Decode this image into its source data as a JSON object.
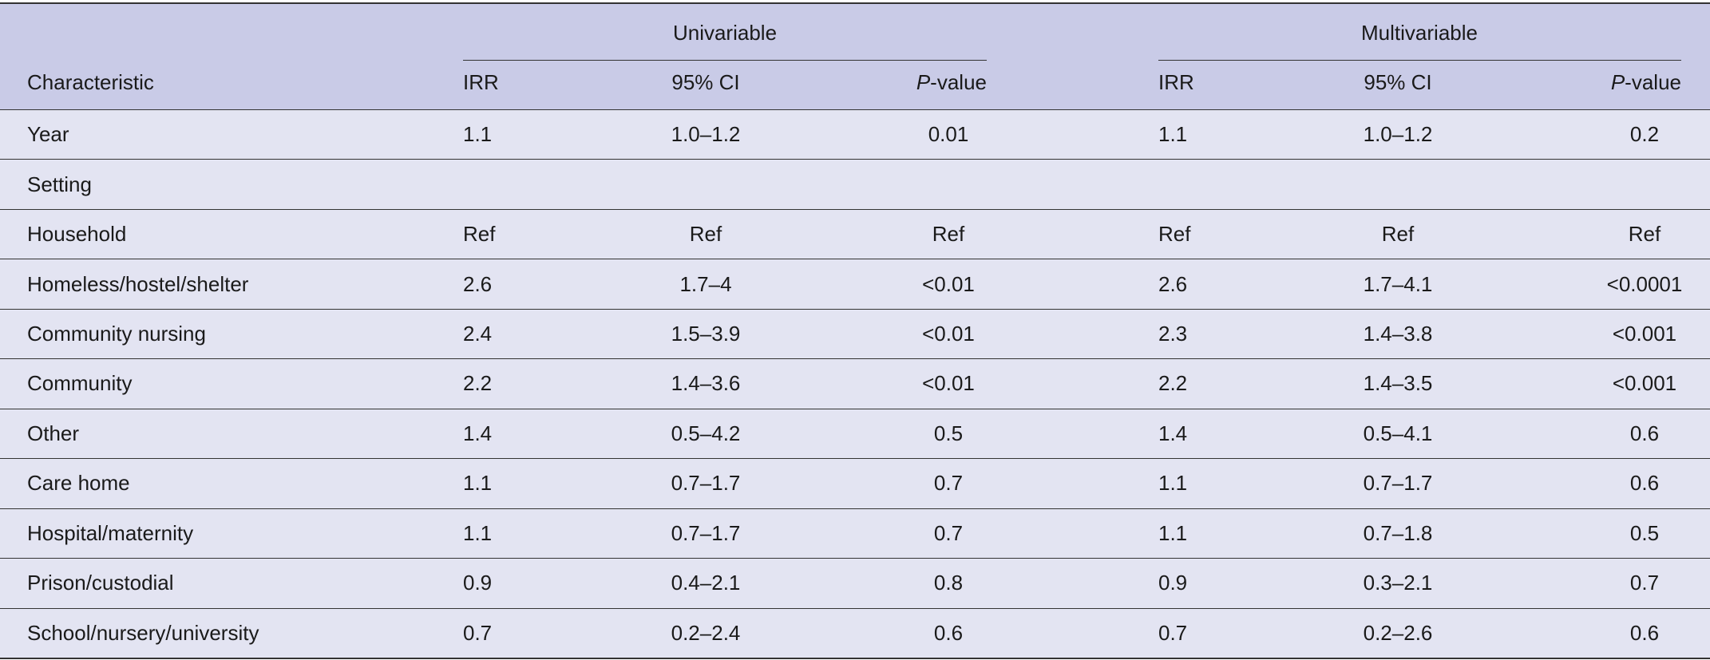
{
  "table": {
    "groups": [
      "Univariable",
      "Multivariable"
    ],
    "columns": [
      "Characteristic",
      "IRR",
      "95% CI",
      "P-value",
      "IRR",
      "95% CI",
      "P-value"
    ],
    "rows": [
      [
        "Year",
        "1.1",
        "1.0–1.2",
        "0.01",
        "1.1",
        "1.0–1.2",
        "0.2"
      ],
      [
        "Setting"
      ],
      [
        "Household",
        "Ref",
        "Ref",
        "Ref",
        "Ref",
        "Ref",
        "Ref"
      ],
      [
        "Homeless/hostel/shelter",
        "2.6",
        "1.7–4",
        "<0.01",
        "2.6",
        "1.7–4.1",
        "<0.0001"
      ],
      [
        "Community nursing",
        "2.4",
        "1.5–3.9",
        "<0.01",
        "2.3",
        "1.4–3.8",
        "<0.001"
      ],
      [
        "Community",
        "2.2",
        "1.4–3.6",
        "<0.01",
        "2.2",
        "1.4–3.5",
        "<0.001"
      ],
      [
        "Other",
        "1.4",
        "0.5–4.2",
        "0.5",
        "1.4",
        "0.5–4.1",
        "0.6"
      ],
      [
        "Care home",
        "1.1",
        "0.7–1.7",
        "0.7",
        "1.1",
        "0.7–1.7",
        "0.6"
      ],
      [
        "Hospital/maternity",
        "1.1",
        "0.7–1.7",
        "0.7",
        "1.1",
        "0.7–1.8",
        "0.5"
      ],
      [
        "Prison/custodial",
        "0.9",
        "0.4–2.1",
        "0.8",
        "0.9",
        "0.3–2.1",
        "0.7"
      ],
      [
        "School/nursery/university",
        "0.7",
        "0.2–2.4",
        "0.6",
        "0.7",
        "0.2–2.6",
        "0.6"
      ]
    ]
  }
}
